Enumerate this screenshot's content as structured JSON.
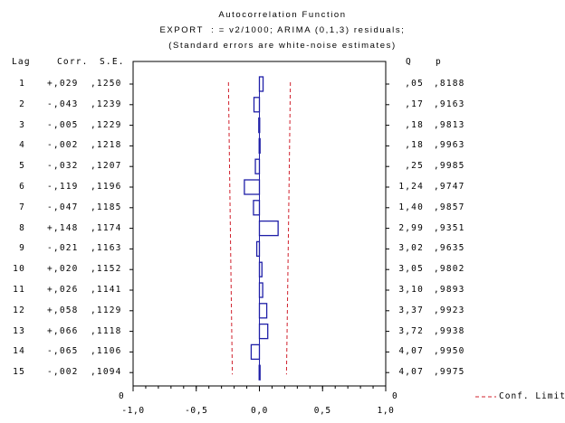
{
  "chart_data": {
    "type": "bar",
    "orientation": "horizontal",
    "title": "Autocorrelation Function",
    "subtitle": "EXPORT  : = v2/1000; ARIMA (0,1,3) residuals;",
    "note": "(Standard errors are white-noise estimates)",
    "headers": {
      "lag": "Lag",
      "corr": "Corr.",
      "se": "S.E.",
      "q": "Q",
      "p": "p"
    },
    "xlim": [
      -1.0,
      1.0
    ],
    "x_ticks": [
      "-1,0",
      "-0,5",
      "0,0",
      "0,5",
      "1,0"
    ],
    "origin_label_left": "0",
    "origin_label_right": "0",
    "legend": {
      "label": "Conf. Limit",
      "position": "bottom-right"
    },
    "rows": [
      {
        "lag": "1",
        "corr_label": "+,029",
        "se_label": ",1250",
        "q_label": ",05",
        "p_label": ",8188",
        "corr": 0.029,
        "se": 0.125
      },
      {
        "lag": "2",
        "corr_label": "-,043",
        "se_label": ",1239",
        "q_label": ",17",
        "p_label": ",9163",
        "corr": -0.043,
        "se": 0.1239
      },
      {
        "lag": "3",
        "corr_label": "-,005",
        "se_label": ",1229",
        "q_label": ",18",
        "p_label": ",9813",
        "corr": -0.005,
        "se": 0.1229
      },
      {
        "lag": "4",
        "corr_label": "-,002",
        "se_label": ",1218",
        "q_label": ",18",
        "p_label": ",9963",
        "corr": -0.002,
        "se": 0.1218
      },
      {
        "lag": "5",
        "corr_label": "-,032",
        "se_label": ",1207",
        "q_label": ",25",
        "p_label": ",9985",
        "corr": -0.032,
        "se": 0.1207
      },
      {
        "lag": "6",
        "corr_label": "-,119",
        "se_label": ",1196",
        "q_label": "1,24",
        "p_label": ",9747",
        "corr": -0.119,
        "se": 0.1196
      },
      {
        "lag": "7",
        "corr_label": "-,047",
        "se_label": ",1185",
        "q_label": "1,40",
        "p_label": ",9857",
        "corr": -0.047,
        "se": 0.1185
      },
      {
        "lag": "8",
        "corr_label": "+,148",
        "se_label": ",1174",
        "q_label": "2,99",
        "p_label": ",9351",
        "corr": 0.148,
        "se": 0.1174
      },
      {
        "lag": "9",
        "corr_label": "-,021",
        "se_label": ",1163",
        "q_label": "3,02",
        "p_label": ",9635",
        "corr": -0.021,
        "se": 0.1163
      },
      {
        "lag": "10",
        "corr_label": "+,020",
        "se_label": ",1152",
        "q_label": "3,05",
        "p_label": ",9802",
        "corr": 0.02,
        "se": 0.1152
      },
      {
        "lag": "11",
        "corr_label": "+,026",
        "se_label": ",1141",
        "q_label": "3,10",
        "p_label": ",9893",
        "corr": 0.026,
        "se": 0.1141
      },
      {
        "lag": "12",
        "corr_label": "+,058",
        "se_label": ",1129",
        "q_label": "3,37",
        "p_label": ",9923",
        "corr": 0.058,
        "se": 0.1129
      },
      {
        "lag": "13",
        "corr_label": "+,066",
        "se_label": ",1118",
        "q_label": "3,72",
        "p_label": ",9938",
        "corr": 0.066,
        "se": 0.1118
      },
      {
        "lag": "14",
        "corr_label": "-,065",
        "se_label": ",1106",
        "q_label": "4,07",
        "p_label": ",9950",
        "corr": -0.065,
        "se": 0.1106
      },
      {
        "lag": "15",
        "corr_label": "-,002",
        "se_label": ",1094",
        "q_label": "4,07",
        "p_label": ",9975",
        "corr": -0.002,
        "se": 0.1094
      }
    ],
    "colors": {
      "bar": "#1f1fa8",
      "conf_limit": "#d0202c",
      "axis": "#000000"
    },
    "grid": false
  }
}
